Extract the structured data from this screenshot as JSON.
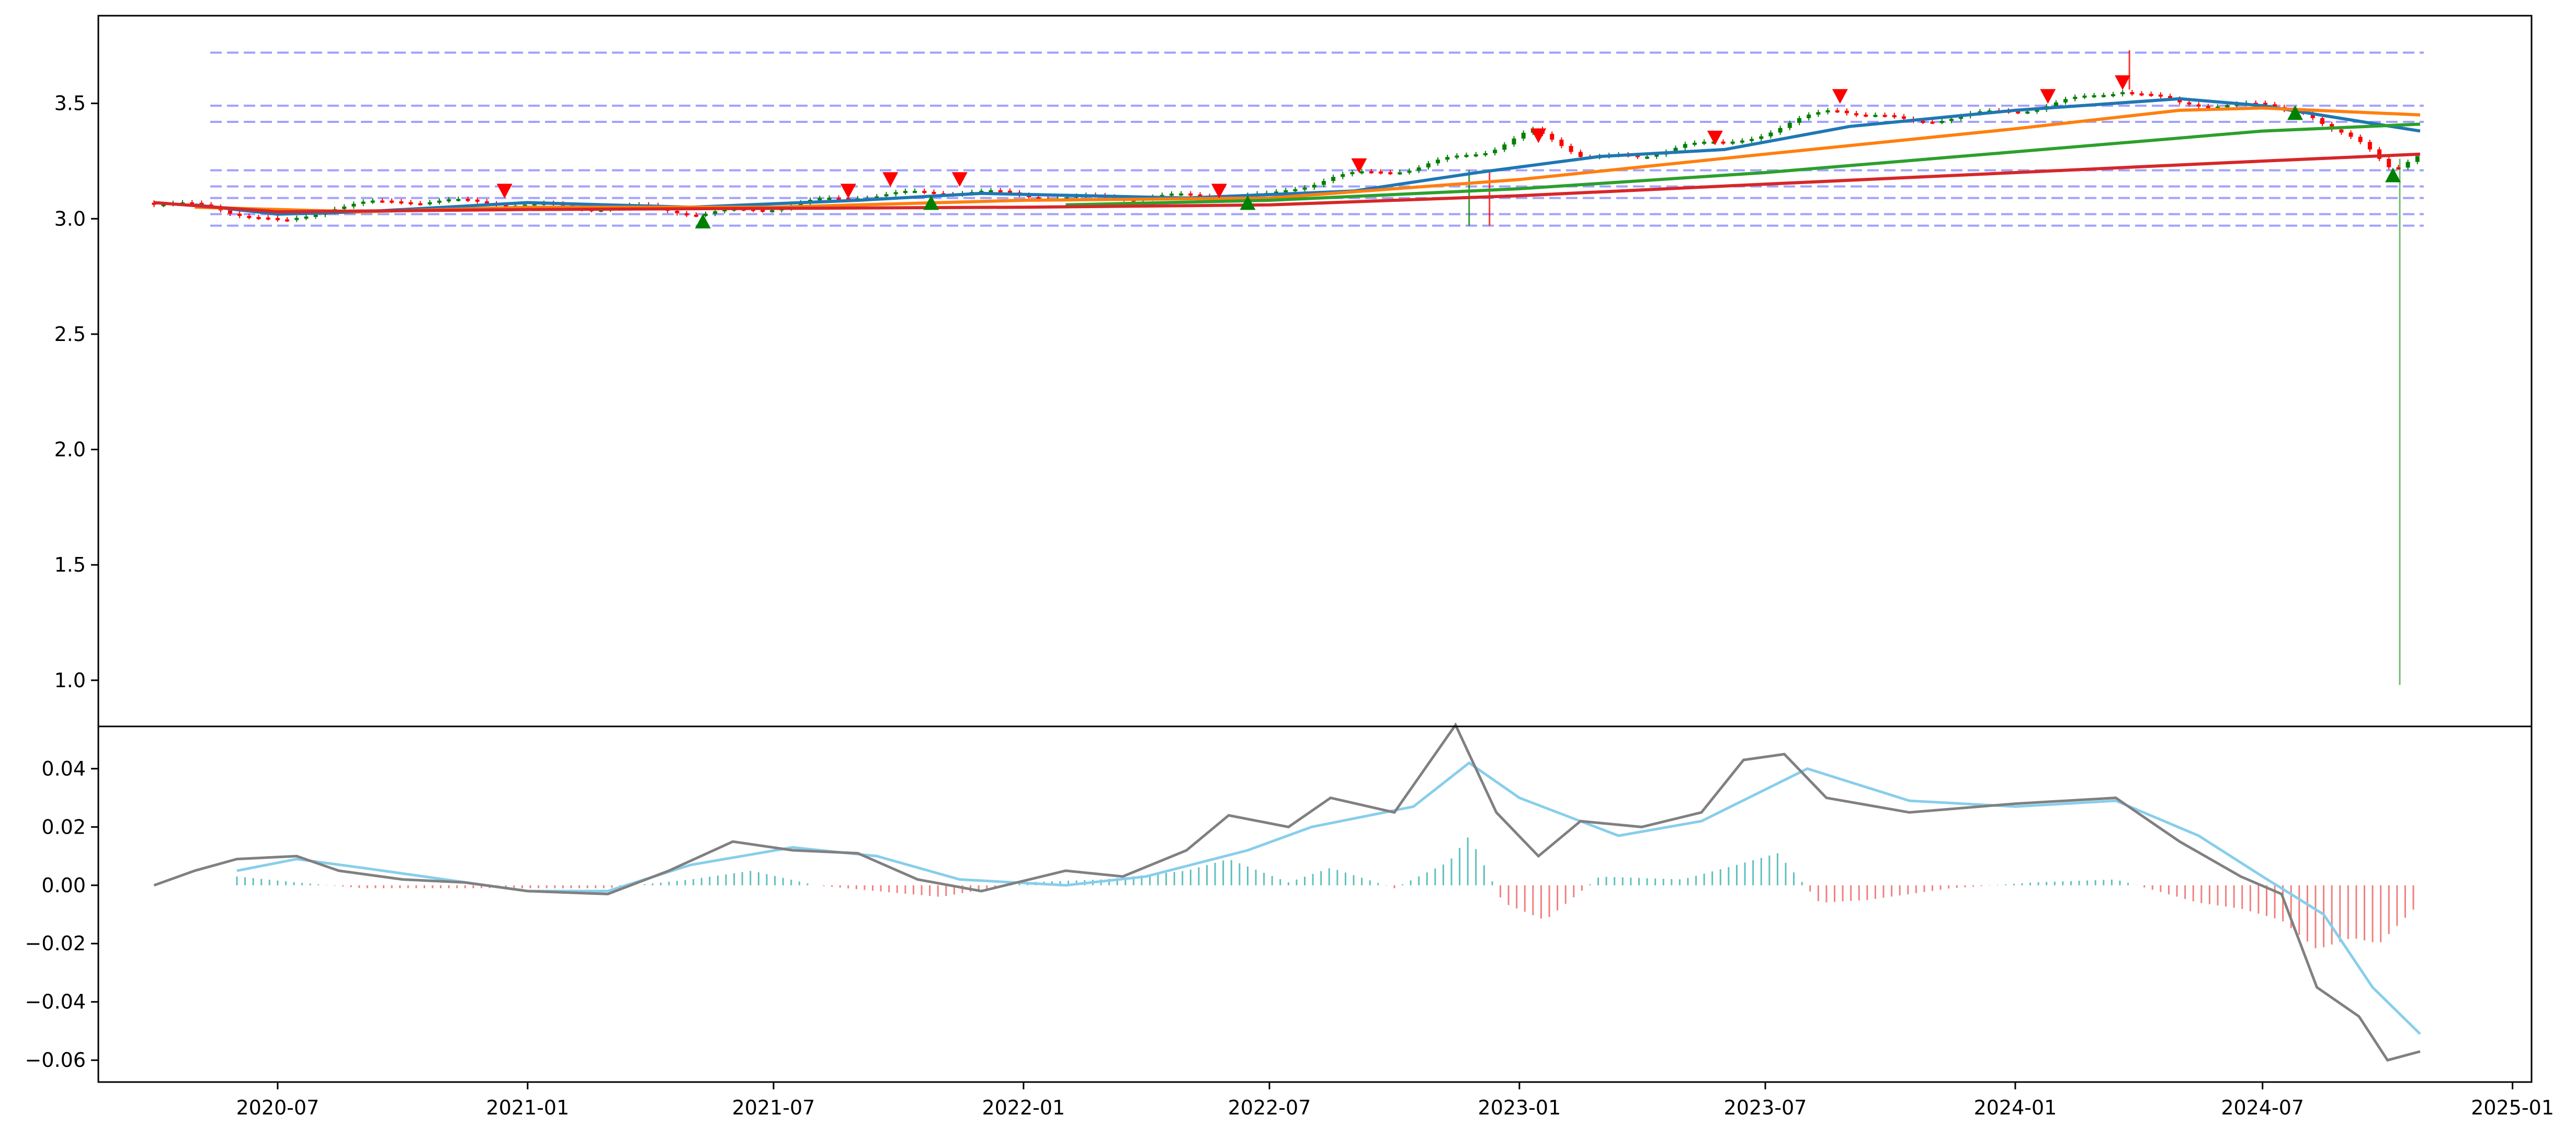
{
  "chart_data": [
    {
      "type": "candlestick",
      "title": "",
      "xlabel": "",
      "ylabel": "",
      "xlim": [
        "2020-02-20",
        "2025-01-15"
      ],
      "ylim": [
        0.8,
        3.88
      ],
      "yticks": [
        1.0,
        1.5,
        2.0,
        2.5,
        3.0,
        3.5
      ],
      "ytick_labels": [
        "1.0",
        "1.5",
        "2.0",
        "2.5",
        "3.0",
        "3.5"
      ],
      "grid": false,
      "legend": "none",
      "colors": {
        "up": "#008000",
        "down": "#ff0000",
        "ma_short": "#1f77b4",
        "ma_medium": "#ff7f0e",
        "ma_long": "#2ca02c",
        "ma_longest": "#d62728",
        "level_lines": "#7a7aff",
        "buy_marker": "#008000",
        "sell_marker": "#ff0000"
      },
      "horizontal_levels": [
        3.72,
        3.49,
        3.42,
        3.21,
        3.14,
        3.09,
        3.02,
        2.97
      ],
      "price_path": [
        [
          "2020-04-01",
          3.07
        ],
        [
          "2020-05-15",
          3.05
        ],
        [
          "2020-06-20",
          3.0
        ],
        [
          "2020-07-05",
          2.98
        ],
        [
          "2020-08-10",
          3.05
        ],
        [
          "2020-10-01",
          3.08
        ],
        [
          "2020-12-10",
          3.07
        ],
        [
          "2021-02-01",
          3.05
        ],
        [
          "2021-04-01",
          3.05
        ],
        [
          "2021-05-10",
          3.02
        ],
        [
          "2021-07-01",
          3.05
        ],
        [
          "2021-09-01",
          3.1
        ],
        [
          "2021-11-20",
          3.12
        ],
        [
          "2022-02-01",
          3.09
        ],
        [
          "2022-05-15",
          3.1
        ],
        [
          "2022-07-01",
          3.1
        ],
        [
          "2022-08-15",
          3.18
        ],
        [
          "2022-10-15",
          3.22
        ],
        [
          "2022-12-10",
          3.3
        ],
        [
          "2023-01-10",
          3.38
        ],
        [
          "2023-02-15",
          3.28
        ],
        [
          "2023-04-01",
          3.26
        ],
        [
          "2023-05-01",
          3.33
        ],
        [
          "2023-06-01",
          3.32
        ],
        [
          "2023-07-15",
          3.4
        ],
        [
          "2023-08-20",
          3.48
        ],
        [
          "2023-10-15",
          3.42
        ],
        [
          "2024-01-15",
          3.48
        ],
        [
          "2024-03-20",
          3.56
        ],
        [
          "2024-05-01",
          3.5
        ],
        [
          "2024-07-01",
          3.49
        ],
        [
          "2024-08-01",
          3.47
        ],
        [
          "2024-08-20",
          3.38
        ],
        [
          "2024-09-15",
          3.32
        ],
        [
          "2024-10-05",
          3.22
        ],
        [
          "2024-10-25",
          3.27
        ]
      ],
      "moving_averages": [
        {
          "key": "ma_short",
          "points": [
            [
              "2020-05-01",
              3.06
            ],
            [
              "2020-07-01",
              3.02
            ],
            [
              "2020-09-01",
              3.03
            ],
            [
              "2021-01-01",
              3.07
            ],
            [
              "2021-05-01",
              3.05
            ],
            [
              "2021-09-01",
              3.08
            ],
            [
              "2021-12-01",
              3.11
            ],
            [
              "2022-05-01",
              3.09
            ],
            [
              "2022-09-01",
              3.12
            ],
            [
              "2022-12-01",
              3.2
            ],
            [
              "2023-03-01",
              3.27
            ],
            [
              "2023-06-01",
              3.3
            ],
            [
              "2023-09-01",
              3.4
            ],
            [
              "2024-01-01",
              3.47
            ],
            [
              "2024-05-01",
              3.52
            ],
            [
              "2024-07-01",
              3.49
            ],
            [
              "2024-10-25",
              3.38
            ]
          ]
        },
        {
          "key": "ma_medium",
          "points": [
            [
              "2020-05-01",
              3.05
            ],
            [
              "2020-09-01",
              3.03
            ],
            [
              "2021-01-01",
              3.05
            ],
            [
              "2021-07-01",
              3.05
            ],
            [
              "2022-01-01",
              3.08
            ],
            [
              "2022-07-01",
              3.09
            ],
            [
              "2023-01-01",
              3.17
            ],
            [
              "2023-07-01",
              3.28
            ],
            [
              "2024-01-01",
              3.39
            ],
            [
              "2024-05-01",
              3.47
            ],
            [
              "2024-07-01",
              3.48
            ],
            [
              "2024-10-25",
              3.45
            ]
          ]
        },
        {
          "key": "ma_long",
          "points": [
            [
              "2022-02-01",
              3.06
            ],
            [
              "2022-07-01",
              3.08
            ],
            [
              "2023-01-01",
              3.13
            ],
            [
              "2023-07-01",
              3.2
            ],
            [
              "2024-01-01",
              3.29
            ],
            [
              "2024-07-01",
              3.38
            ],
            [
              "2024-10-25",
              3.41
            ]
          ]
        },
        {
          "key": "ma_longest",
          "points": [
            [
              "2020-04-01",
              3.07
            ],
            [
              "2020-07-01",
              3.03
            ],
            [
              "2021-01-01",
              3.04
            ],
            [
              "2022-01-01",
              3.05
            ],
            [
              "2022-07-01",
              3.06
            ],
            [
              "2023-01-01",
              3.1
            ],
            [
              "2023-07-01",
              3.15
            ],
            [
              "2024-01-01",
              3.2
            ],
            [
              "2024-07-01",
              3.25
            ],
            [
              "2024-10-25",
              3.28
            ]
          ]
        }
      ],
      "sell_signals": [
        [
          "2020-12-15",
          3.12
        ],
        [
          "2021-08-25",
          3.12
        ],
        [
          "2021-09-25",
          3.17
        ],
        [
          "2021-11-15",
          3.17
        ],
        [
          "2022-05-25",
          3.12
        ],
        [
          "2022-09-05",
          3.23
        ],
        [
          "2023-01-15",
          3.36
        ],
        [
          "2023-05-25",
          3.35
        ],
        [
          "2023-08-25",
          3.53
        ],
        [
          "2024-01-25",
          3.53
        ],
        [
          "2024-03-20",
          3.59
        ]
      ],
      "buy_signals": [
        [
          "2021-05-10",
          2.99
        ],
        [
          "2021-10-25",
          3.07
        ],
        [
          "2022-06-15",
          3.07
        ],
        [
          "2024-07-25",
          3.46
        ],
        [
          "2024-10-05",
          3.19
        ]
      ],
      "spikes": [
        [
          "2022-11-25",
          2.97,
          3.21,
          "up"
        ],
        [
          "2022-12-10",
          2.97,
          3.2,
          "down"
        ],
        [
          "2024-03-25",
          3.56,
          3.73,
          "down"
        ],
        [
          "2024-10-10",
          0.98,
          3.26,
          "up"
        ]
      ]
    },
    {
      "type": "line",
      "title": "",
      "xlabel": "",
      "ylabel": "",
      "xlim": [
        "2020-02-20",
        "2025-01-15"
      ],
      "ylim": [
        -0.0675,
        0.0545
      ],
      "yticks": [
        -0.06,
        -0.04,
        -0.02,
        0.0,
        0.02,
        0.04
      ],
      "ytick_labels": [
        "−0.06",
        "−0.04",
        "−0.02",
        "0.00",
        "0.02",
        "0.04"
      ],
      "xticks": [
        "2020-07-01",
        "2021-01-01",
        "2021-07-01",
        "2022-01-01",
        "2022-07-01",
        "2023-01-01",
        "2023-07-01",
        "2024-01-01",
        "2024-07-01",
        "2025-01-01"
      ],
      "xtick_labels": [
        "2020-07",
        "2021-01",
        "2021-07",
        "2022-01",
        "2022-07",
        "2023-01",
        "2023-07",
        "2024-01",
        "2024-07",
        "2025-01"
      ],
      "grid": false,
      "legend": "none",
      "colors": {
        "fast": "#808080",
        "signal": "#87ceeb",
        "hist_pos": "#5fbfbf",
        "hist_neg": "#f08080"
      },
      "series": [
        {
          "key": "fast",
          "x": [
            "2020-04-01",
            "2020-05-01",
            "2020-06-01",
            "2020-07-15",
            "2020-08-15",
            "2020-10-01",
            "2020-11-15",
            "2021-01-01",
            "2021-03-01",
            "2021-04-15",
            "2021-06-01",
            "2021-07-15",
            "2021-09-01",
            "2021-10-15",
            "2021-12-01",
            "2022-02-01",
            "2022-03-15",
            "2022-05-01",
            "2022-06-01",
            "2022-07-15",
            "2022-08-15",
            "2022-10-01",
            "2022-11-15",
            "2022-12-15",
            "2023-01-15",
            "2023-02-15",
            "2023-04-01",
            "2023-05-15",
            "2023-06-15",
            "2023-07-15",
            "2023-08-15",
            "2023-10-15",
            "2024-01-01",
            "2024-03-15",
            "2024-05-01",
            "2024-06-15",
            "2024-07-15",
            "2024-08-10",
            "2024-09-10",
            "2024-10-01",
            "2024-10-25"
          ],
          "y": [
            0.0,
            0.005,
            0.009,
            0.01,
            0.005,
            0.002,
            0.001,
            -0.002,
            -0.003,
            0.005,
            0.015,
            0.012,
            0.011,
            0.002,
            -0.002,
            0.005,
            0.003,
            0.012,
            0.024,
            0.02,
            0.03,
            0.025,
            0.055,
            0.025,
            0.01,
            0.022,
            0.02,
            0.025,
            0.043,
            0.045,
            0.03,
            0.025,
            0.028,
            0.03,
            0.015,
            0.003,
            -0.003,
            -0.035,
            -0.045,
            -0.06,
            -0.057
          ]
        },
        {
          "key": "signal",
          "x": [
            "2020-06-01",
            "2020-07-15",
            "2020-09-01",
            "2020-11-01",
            "2021-01-01",
            "2021-03-01",
            "2021-05-01",
            "2021-07-15",
            "2021-09-15",
            "2021-11-15",
            "2022-02-01",
            "2022-04-01",
            "2022-06-15",
            "2022-08-01",
            "2022-10-15",
            "2022-11-25",
            "2023-01-01",
            "2023-03-15",
            "2023-05-15",
            "2023-08-01",
            "2023-10-15",
            "2024-01-01",
            "2024-03-15",
            "2024-05-15",
            "2024-07-01",
            "2024-08-15",
            "2024-09-20",
            "2024-10-25"
          ],
          "y": [
            0.005,
            0.009,
            0.006,
            0.002,
            -0.002,
            -0.002,
            0.007,
            0.013,
            0.01,
            0.002,
            0.0,
            0.003,
            0.012,
            0.02,
            0.027,
            0.042,
            0.03,
            0.017,
            0.022,
            0.04,
            0.029,
            0.027,
            0.029,
            0.017,
            0.003,
            -0.01,
            -0.035,
            -0.051
          ]
        },
        {
          "key": "histogram",
          "x": [
            "2020-06-01",
            "2020-07-15",
            "2020-09-01",
            "2020-11-01",
            "2021-01-01",
            "2021-03-01",
            "2021-05-01",
            "2021-06-15",
            "2021-08-01",
            "2021-09-15",
            "2021-11-01",
            "2022-01-01",
            "2022-03-01",
            "2022-05-01",
            "2022-06-01",
            "2022-07-15",
            "2022-08-15",
            "2022-10-01",
            "2022-11-10",
            "2022-11-25",
            "2022-12-20",
            "2023-01-20",
            "2023-03-01",
            "2023-05-01",
            "2023-06-10",
            "2023-07-10",
            "2023-08-10",
            "2023-09-15",
            "2023-11-15",
            "2024-01-15",
            "2024-03-15",
            "2024-05-15",
            "2024-06-15",
            "2024-07-15",
            "2024-08-10",
            "2024-09-05",
            "2024-09-25",
            "2024-10-25"
          ],
          "y": [
            0.003,
            0.001,
            -0.001,
            -0.001,
            -0.001,
            -0.001,
            0.002,
            0.005,
            0.0,
            -0.002,
            -0.004,
            0.001,
            0.002,
            0.005,
            0.009,
            0.001,
            0.006,
            -0.001,
            0.008,
            0.017,
            -0.006,
            -0.012,
            0.003,
            0.002,
            0.007,
            0.011,
            -0.006,
            -0.005,
            -0.001,
            0.001,
            0.002,
            -0.006,
            -0.008,
            -0.012,
            -0.022,
            -0.018,
            -0.02,
            -0.006
          ]
        }
      ]
    }
  ]
}
